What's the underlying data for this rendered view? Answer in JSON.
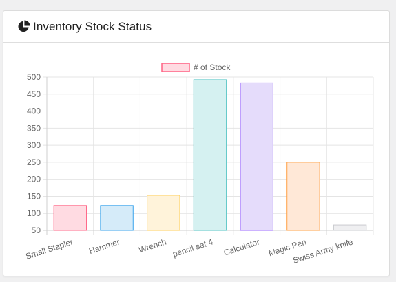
{
  "card": {
    "title": "Inventory Stock Status",
    "icon": "pie-chart-icon"
  },
  "chart_data": {
    "type": "bar",
    "categories": [
      "Small Stapler",
      "Hammer",
      "Wrench",
      "pencil set 4",
      "Calculator",
      "Magic Pen",
      "Swiss Army knife"
    ],
    "series": [
      {
        "name": "# of Stock",
        "values": [
          123,
          123,
          153,
          492,
          483,
          250,
          66
        ]
      }
    ],
    "bar_fill_colors": [
      "#ffdbe2",
      "#d5ebf9",
      "#fff3da",
      "#d5f1f1",
      "#e5dcfb",
      "#ffe8d7",
      "#efeff1"
    ],
    "bar_stroke_colors": [
      "#ff6384",
      "#36a2eb",
      "#ffcd56",
      "#4bc0c0",
      "#9966ff",
      "#ff9f40",
      "#c9cbcf"
    ],
    "y_ticks": [
      50,
      100,
      150,
      200,
      250,
      300,
      350,
      400,
      450,
      500
    ],
    "ylim": [
      50,
      500
    ],
    "grid": true,
    "legend_position": "top",
    "legend_fill": "#ffdbe2",
    "legend_stroke": "#ff6384"
  }
}
